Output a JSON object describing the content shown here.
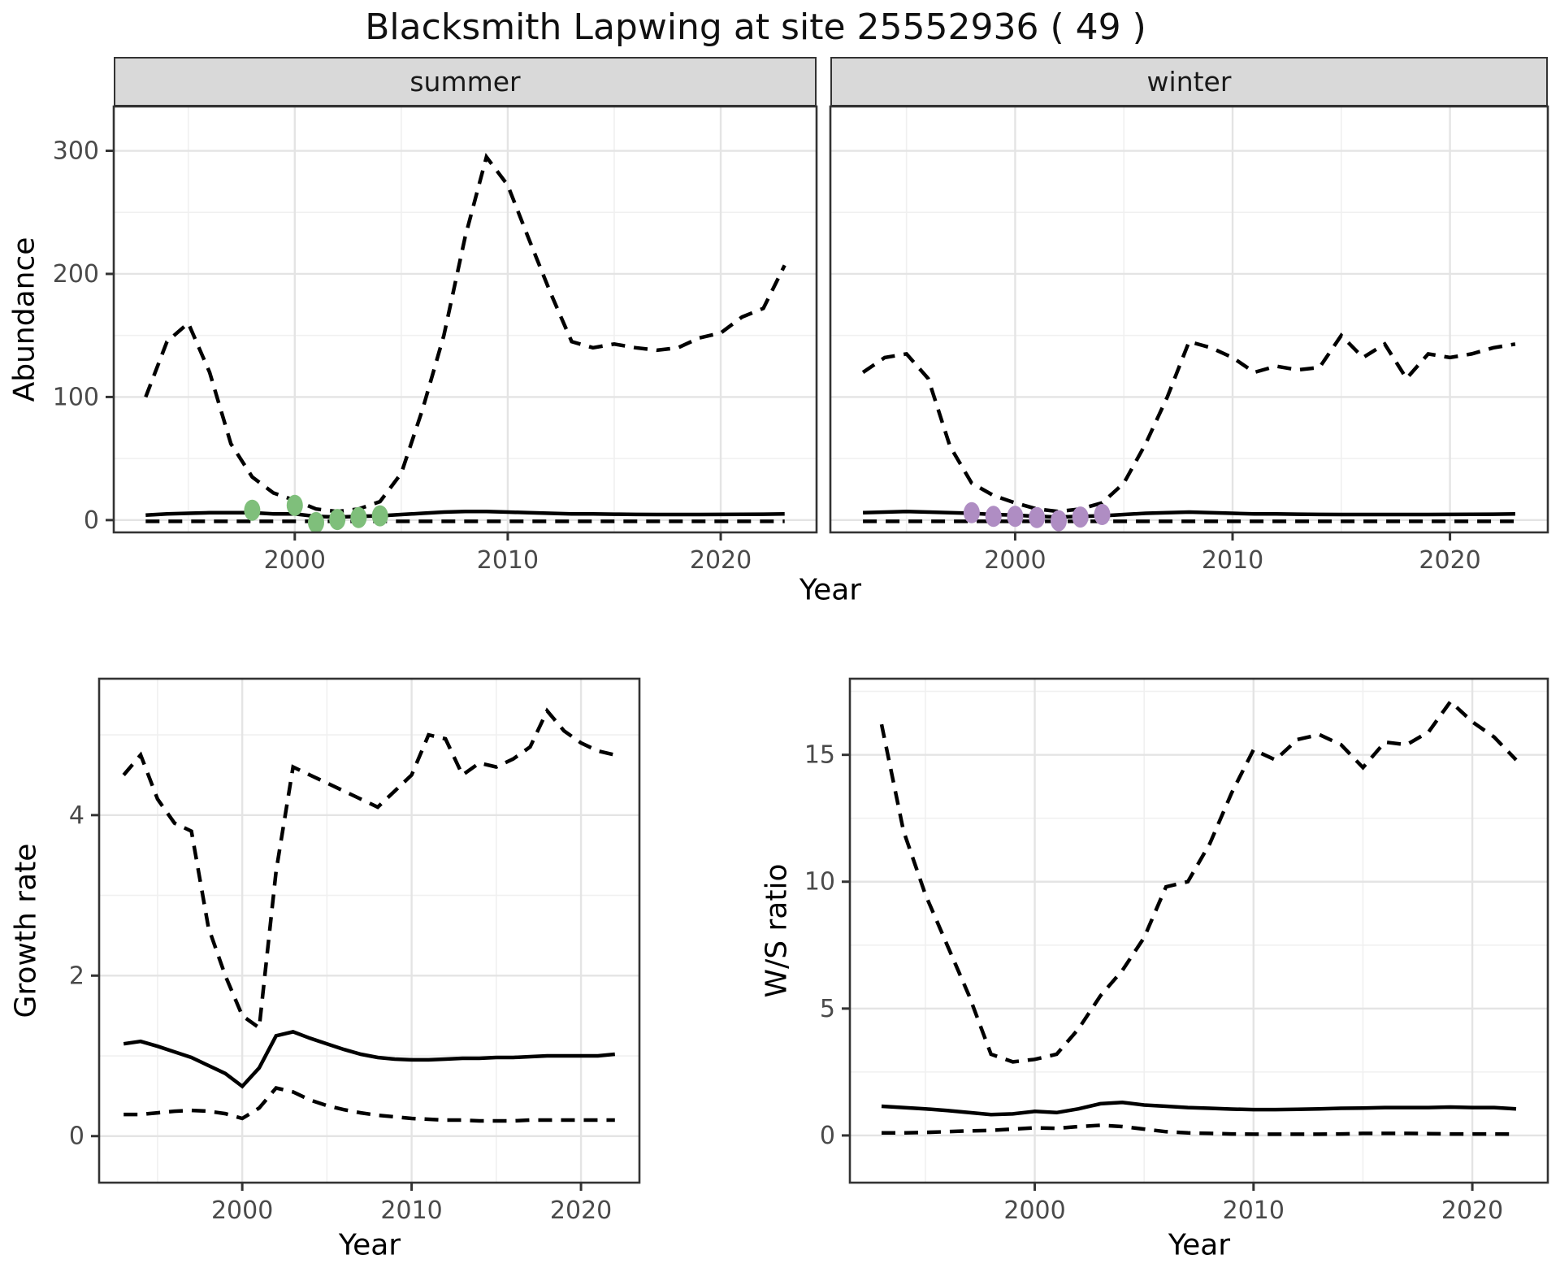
{
  "title": "Blacksmith Lapwing at site 25552936 ( 49 )",
  "colors": {
    "summer_points": "#7fbf7b",
    "winter_points": "#af8dc3",
    "series_line": "#000000",
    "strip_bg": "#d9d9d9",
    "panel_border": "#333333",
    "grid_major": "#e4e4e4",
    "grid_minor": "#f0f0f0",
    "tick_text": "#4a4a4a"
  },
  "top_row": {
    "xlabel": "Year",
    "ylabel": "Abundance"
  },
  "chart_data": [
    {
      "id": "summer",
      "type": "line",
      "facet_label": "summer",
      "xlabel": "Year",
      "ylabel": "Abundance",
      "xlim": [
        1991.5,
        2024.5
      ],
      "ylim": [
        -10,
        336
      ],
      "xticks": [
        2000,
        2010,
        2020
      ],
      "yticks": [
        0,
        100,
        200,
        300
      ],
      "xticks_minor": [
        1995,
        2005,
        2015
      ],
      "yticks_minor": [
        50,
        150,
        250
      ],
      "grid": true,
      "legend": "none",
      "x": [
        1993,
        1994,
        1995,
        1996,
        1997,
        1998,
        1999,
        2000,
        2001,
        2002,
        2003,
        2004,
        2005,
        2006,
        2007,
        2008,
        2009,
        2010,
        2011,
        2012,
        2013,
        2014,
        2015,
        2016,
        2017,
        2018,
        2019,
        2020,
        2021,
        2022,
        2023
      ],
      "series": [
        {
          "name": "upper-credible-interval",
          "style": "dashed",
          "values": [
            100,
            145,
            160,
            120,
            62,
            35,
            22,
            16,
            9,
            7,
            9,
            15,
            38,
            90,
            150,
            230,
            295,
            272,
            228,
            185,
            145,
            140,
            143,
            140,
            138,
            140,
            148,
            152,
            165,
            172,
            207
          ]
        },
        {
          "name": "median-abundance",
          "style": "solid",
          "values": [
            4,
            5,
            5.5,
            6,
            6,
            6,
            5,
            5,
            3,
            2.5,
            3,
            3.5,
            4.5,
            5.5,
            6.5,
            7,
            7,
            6.5,
            6,
            5.5,
            5,
            5,
            4.8,
            4.6,
            4.5,
            4.5,
            4.5,
            4.6,
            4.7,
            4.8,
            5
          ]
        },
        {
          "name": "lower-credible-interval",
          "style": "dashed",
          "values": [
            -1,
            -1,
            -1,
            -1,
            -1,
            -1,
            -1,
            -1,
            -1,
            -1,
            -1,
            -1,
            -1,
            -1,
            -1,
            -1,
            -1,
            -1,
            -1,
            -1,
            -1,
            -1,
            -1,
            -1,
            -1,
            -1,
            -1,
            -1,
            -1,
            -1,
            -1
          ]
        }
      ],
      "points": {
        "name": "observed-summer-counts",
        "color_key": "summer_points",
        "x": [
          1998,
          2000,
          2001,
          2002,
          2003,
          2004
        ],
        "y": [
          8,
          12,
          -2,
          0.5,
          2,
          3.5
        ]
      },
      "show_yticklabels": true
    },
    {
      "id": "winter",
      "type": "line",
      "facet_label": "winter",
      "xlabel": "Year",
      "ylabel": "Abundance",
      "xlim": [
        1991.5,
        2024.5
      ],
      "ylim": [
        -10,
        336
      ],
      "xticks": [
        2000,
        2010,
        2020
      ],
      "yticks": [
        0,
        100,
        200,
        300
      ],
      "xticks_minor": [
        1995,
        2005,
        2015
      ],
      "yticks_minor": [
        50,
        150,
        250
      ],
      "grid": true,
      "legend": "none",
      "x": [
        1993,
        1994,
        1995,
        1996,
        1997,
        1998,
        1999,
        2000,
        2001,
        2002,
        2003,
        2004,
        2005,
        2006,
        2007,
        2008,
        2009,
        2010,
        2011,
        2012,
        2013,
        2014,
        2015,
        2016,
        2017,
        2018,
        2019,
        2020,
        2021,
        2022,
        2023
      ],
      "series": [
        {
          "name": "upper-credible-interval",
          "style": "dashed",
          "values": [
            120,
            132,
            135,
            115,
            60,
            30,
            20,
            14,
            9,
            7,
            9,
            14,
            30,
            62,
            100,
            145,
            140,
            132,
            120,
            125,
            122,
            124,
            150,
            132,
            143,
            115,
            135,
            132,
            135,
            140,
            143
          ]
        },
        {
          "name": "median-abundance",
          "style": "solid",
          "values": [
            6,
            6.5,
            7,
            6.5,
            6,
            5.5,
            4.5,
            4,
            3,
            2.5,
            3,
            3.5,
            4.5,
            5.5,
            6,
            6.5,
            6,
            5.5,
            5,
            5,
            4.8,
            4.6,
            4.5,
            4.5,
            4.5,
            4.5,
            4.5,
            4.6,
            4.7,
            4.8,
            5
          ]
        },
        {
          "name": "lower-credible-interval",
          "style": "dashed",
          "values": [
            -1,
            -1,
            -1,
            -1,
            -1,
            -1,
            -1,
            -1,
            -1,
            -1,
            -1,
            -1,
            -1,
            -1,
            -1,
            -1,
            -1,
            -1,
            -1,
            -1,
            -1,
            -1,
            -1,
            -1,
            -1,
            -1,
            -1,
            -1,
            -1,
            -1,
            -1
          ]
        }
      ],
      "points": {
        "name": "observed-winter-counts",
        "color_key": "winter_points",
        "x": [
          1998,
          1999,
          2000,
          2001,
          2002,
          2003,
          2004
        ],
        "y": [
          6,
          3,
          3,
          2,
          -0.5,
          2.5,
          4.5
        ]
      },
      "show_yticklabels": false
    },
    {
      "id": "growth",
      "type": "line",
      "facet_label": "",
      "xlabel": "Year",
      "ylabel": "Growth rate",
      "xlim": [
        1991.55,
        2023.45
      ],
      "ylim": [
        -0.58,
        5.7
      ],
      "xticks": [
        2000,
        2010,
        2020
      ],
      "yticks": [
        0,
        2,
        4
      ],
      "xticks_minor": [
        1995,
        2005,
        2015
      ],
      "yticks_minor": [
        1,
        3,
        5
      ],
      "grid": true,
      "legend": "none",
      "x": [
        1993,
        1994,
        1995,
        1996,
        1997,
        1998,
        1999,
        2000,
        2001,
        2002,
        2003,
        2004,
        2005,
        2006,
        2007,
        2008,
        2009,
        2010,
        2011,
        2012,
        2013,
        2014,
        2015,
        2016,
        2017,
        2018,
        2019,
        2020,
        2021,
        2022
      ],
      "series": [
        {
          "name": "upper-credible-interval",
          "style": "dashed",
          "values": [
            4.5,
            4.75,
            4.2,
            3.9,
            3.8,
            2.6,
            2.0,
            1.5,
            1.35,
            3.3,
            4.6,
            4.5,
            4.4,
            4.3,
            4.2,
            4.1,
            4.3,
            4.5,
            5.0,
            4.95,
            4.5,
            4.65,
            4.6,
            4.7,
            4.85,
            5.3,
            5.05,
            4.9,
            4.8,
            4.75
          ]
        },
        {
          "name": "median-growth-rate",
          "style": "solid",
          "values": [
            1.15,
            1.18,
            1.12,
            1.05,
            0.98,
            0.88,
            0.78,
            0.62,
            0.85,
            1.25,
            1.3,
            1.22,
            1.15,
            1.08,
            1.02,
            0.98,
            0.96,
            0.95,
            0.95,
            0.96,
            0.97,
            0.97,
            0.98,
            0.98,
            0.99,
            1.0,
            1.0,
            1.0,
            1.0,
            1.02
          ]
        },
        {
          "name": "lower-credible-interval",
          "style": "dashed",
          "values": [
            0.27,
            0.27,
            0.29,
            0.31,
            0.32,
            0.31,
            0.28,
            0.22,
            0.35,
            0.6,
            0.55,
            0.45,
            0.38,
            0.33,
            0.29,
            0.26,
            0.24,
            0.22,
            0.21,
            0.2,
            0.2,
            0.19,
            0.19,
            0.19,
            0.2,
            0.2,
            0.2,
            0.2,
            0.2,
            0.2
          ]
        }
      ],
      "points": null,
      "show_yticklabels": true
    },
    {
      "id": "ws",
      "type": "line",
      "facet_label": "",
      "xlabel": "Year",
      "ylabel": "W/S ratio",
      "xlim": [
        1991.55,
        2023.45
      ],
      "ylim": [
        -1.86,
        18.0
      ],
      "xticks": [
        2000,
        2010,
        2020
      ],
      "yticks": [
        0,
        5,
        10,
        15
      ],
      "xticks_minor": [
        1995,
        2005,
        2015
      ],
      "yticks_minor": [
        2.5,
        7.5,
        12.5,
        17.5
      ],
      "grid": true,
      "legend": "none",
      "x": [
        1993,
        1994,
        1995,
        1996,
        1997,
        1998,
        1999,
        2000,
        2001,
        2002,
        2003,
        2004,
        2005,
        2006,
        2007,
        2008,
        2009,
        2010,
        2011,
        2012,
        2013,
        2014,
        2015,
        2016,
        2017,
        2018,
        2019,
        2020,
        2021,
        2022
      ],
      "series": [
        {
          "name": "upper-credible-interval",
          "style": "dashed",
          "values": [
            16.2,
            12.0,
            9.5,
            7.5,
            5.5,
            3.2,
            2.9,
            3.0,
            3.2,
            4.2,
            5.5,
            6.5,
            7.8,
            9.8,
            10.0,
            11.5,
            13.5,
            15.2,
            14.8,
            15.6,
            15.8,
            15.4,
            14.5,
            15.5,
            15.4,
            15.9,
            17.1,
            16.3,
            15.7,
            14.8
          ]
        },
        {
          "name": "median-ws-ratio",
          "style": "solid",
          "values": [
            1.15,
            1.1,
            1.05,
            0.98,
            0.9,
            0.82,
            0.85,
            0.95,
            0.9,
            1.05,
            1.25,
            1.3,
            1.2,
            1.15,
            1.1,
            1.07,
            1.04,
            1.02,
            1.02,
            1.03,
            1.05,
            1.07,
            1.08,
            1.1,
            1.1,
            1.1,
            1.12,
            1.1,
            1.1,
            1.05
          ]
        },
        {
          "name": "lower-credible-interval",
          "style": "dashed",
          "values": [
            0.1,
            0.1,
            0.12,
            0.15,
            0.18,
            0.2,
            0.25,
            0.3,
            0.28,
            0.35,
            0.4,
            0.35,
            0.25,
            0.15,
            0.1,
            0.08,
            0.06,
            0.05,
            0.05,
            0.05,
            0.05,
            0.06,
            0.08,
            0.08,
            0.08,
            0.07,
            0.06,
            0.06,
            0.06,
            0.05
          ]
        }
      ],
      "points": null,
      "show_yticklabels": true
    }
  ]
}
